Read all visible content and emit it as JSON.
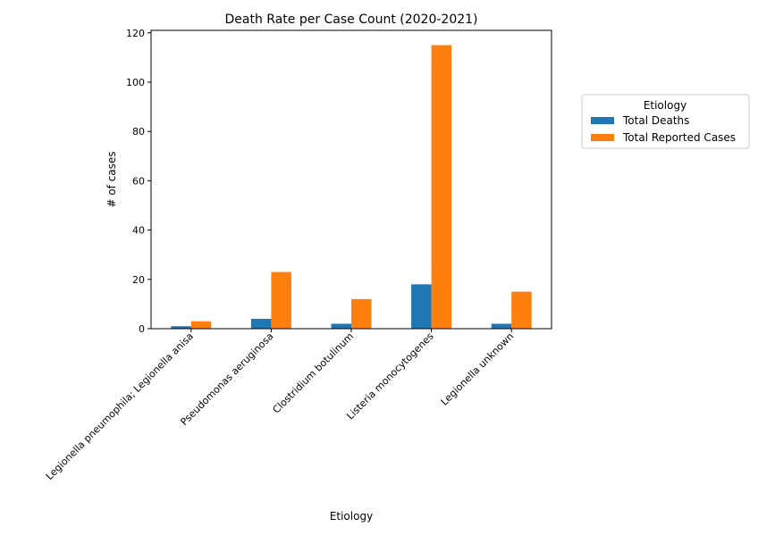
{
  "chart_data": {
    "type": "bar",
    "title": "Death Rate per Case Count (2020-2021)",
    "xlabel": "Etiology",
    "ylabel": "# of cases",
    "ylim": [
      0,
      121
    ],
    "yticks": [
      0,
      20,
      40,
      60,
      80,
      100,
      120
    ],
    "categories": [
      "Legionella pneumophila; Legionella anisa",
      "Pseudomonas aeruginosa",
      "Clostridium botulinum",
      "Listeria monocytogenes",
      "Legionella unknown"
    ],
    "series": [
      {
        "name": "Total Deaths",
        "color": "#1f77b4",
        "values": [
          1,
          4,
          2,
          18,
          2
        ]
      },
      {
        "name": "Total Reported Cases",
        "color": "#ff7f0e",
        "values": [
          3,
          23,
          12,
          115,
          15
        ]
      }
    ],
    "legend": {
      "title": "Etiology",
      "placement": "outside right"
    },
    "grid": false
  }
}
